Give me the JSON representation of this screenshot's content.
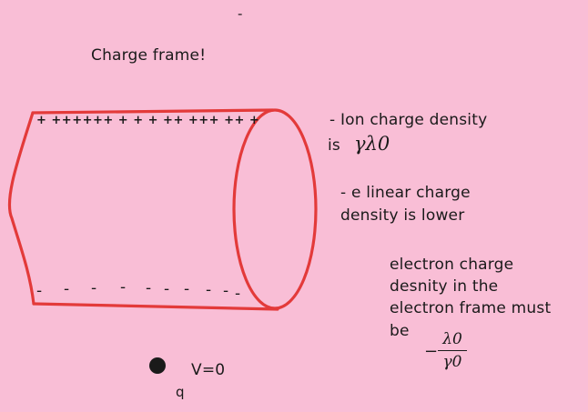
{
  "title": "Charge frame!",
  "dash_mark": "-",
  "ion_charges": "+ ++++++ + + + ++ +++ ++ +",
  "electron_charges": [
    "-",
    "-",
    "-",
    "-",
    "-",
    "-",
    "-",
    "-",
    "-",
    "-"
  ],
  "note_ion": {
    "line1": "- Ion charge density",
    "line2": "is",
    "math": "γλ0"
  },
  "note_e": {
    "line1": "- e linear charge",
    "line2": "density is lower"
  },
  "note_electron_frame": {
    "line1": "electron charge",
    "line2": "desnity in the",
    "line3": "electron frame must",
    "line4": "be",
    "numerator": "λ0",
    "denominator": "γ0",
    "sign": "−"
  },
  "charge": {
    "velocity": "V=0",
    "label": "q"
  },
  "colors": {
    "background": "#f9bed6",
    "cylinder": "#e33a3a",
    "ink": "#1a1a1a"
  }
}
